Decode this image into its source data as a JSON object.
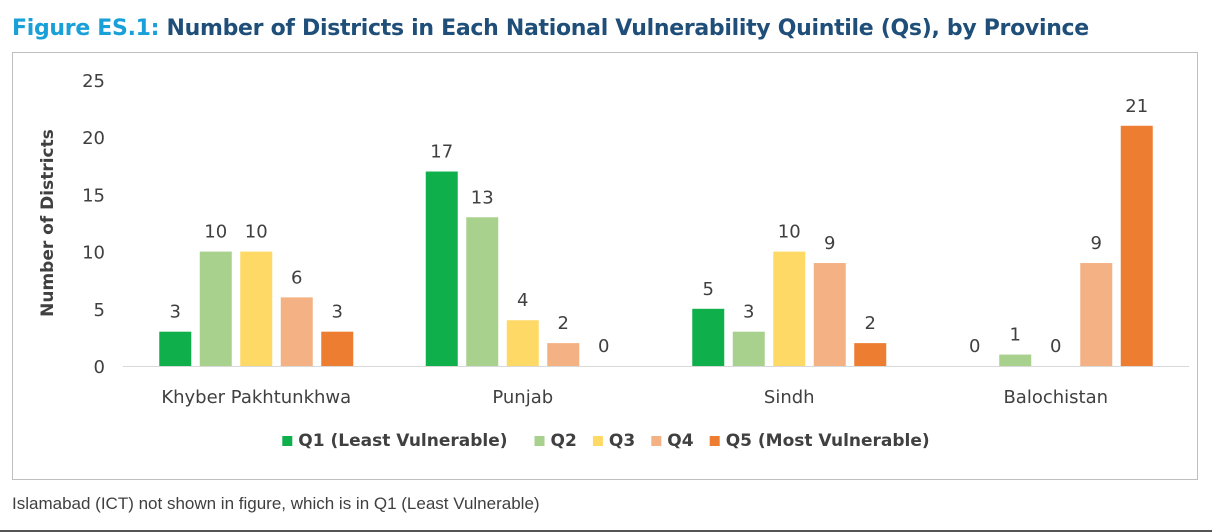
{
  "figure": {
    "label": "Figure ES.1:",
    "title": "Number of Districts in Each National Vulnerability Quintile (Qs), by Province"
  },
  "footnote": "Islamabad (ICT) not shown in figure, which is in Q1 (Least Vulnerable)",
  "chart_data": {
    "type": "bar",
    "title": "Number of Districts in Each National Vulnerability Quintile (Qs), by Province",
    "xlabel": "",
    "ylabel": "Number of Districts",
    "ylim": [
      0,
      25
    ],
    "yticks": [
      0,
      5,
      10,
      15,
      20,
      25
    ],
    "grid": false,
    "legend_position": "bottom",
    "categories": [
      "Khyber Pakhtunkhwa",
      "Punjab",
      "Sindh",
      "Balochistan"
    ],
    "series": [
      {
        "name": "Q1 (Least Vulnerable)",
        "color": "#0fb04b",
        "values": [
          3,
          17,
          5,
          0
        ]
      },
      {
        "name": "Q2",
        "color": "#a9d18e",
        "values": [
          10,
          13,
          3,
          1
        ]
      },
      {
        "name": "Q3",
        "color": "#ffd966",
        "values": [
          10,
          4,
          10,
          0
        ]
      },
      {
        "name": "Q4",
        "color": "#f4b183",
        "values": [
          6,
          2,
          9,
          9
        ]
      },
      {
        "name": "Q5 (Most Vulnerable)",
        "color": "#ed7d31",
        "values": [
          3,
          0,
          2,
          21
        ]
      }
    ]
  }
}
